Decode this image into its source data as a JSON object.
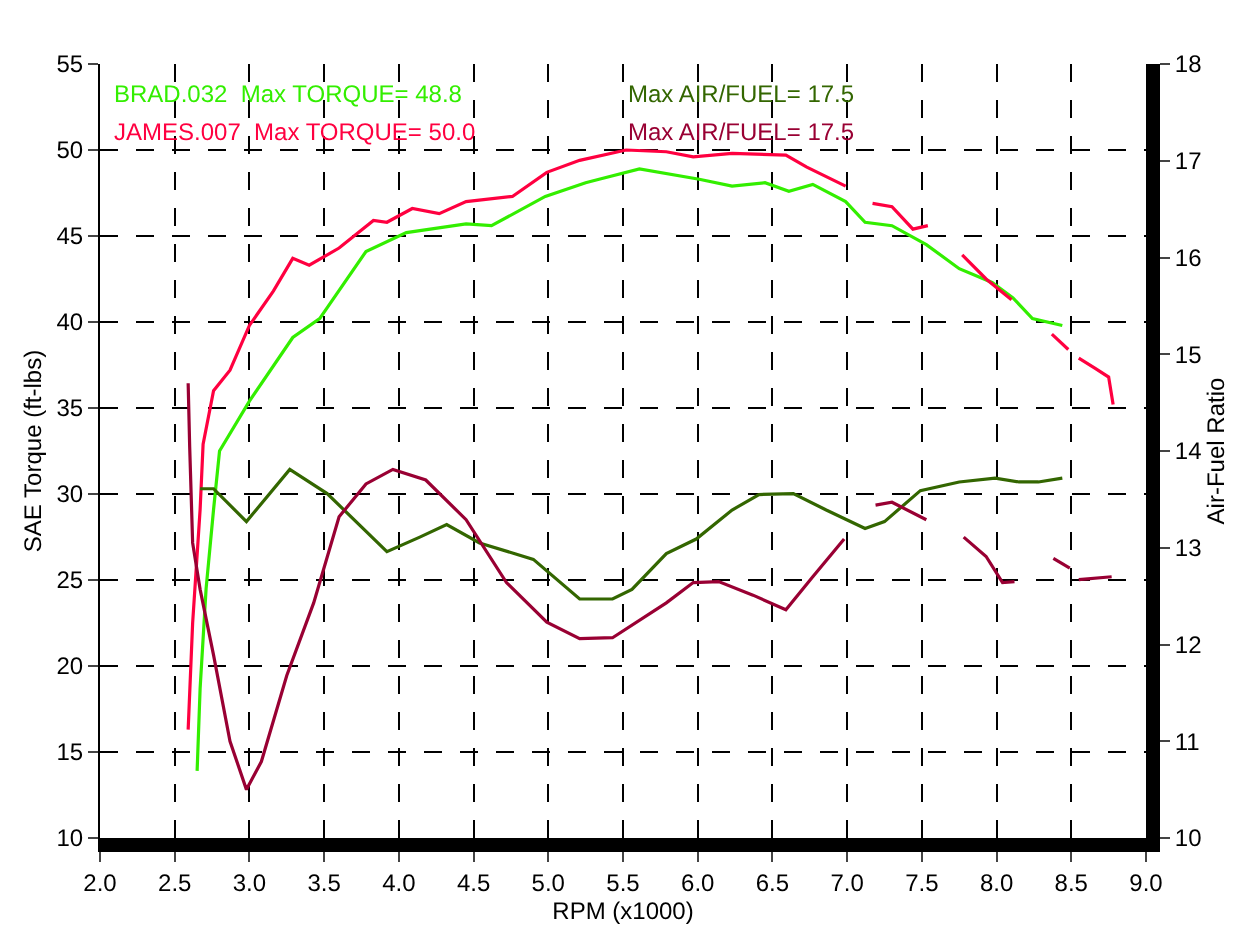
{
  "chart_data": {
    "type": "line",
    "xlabel": "RPM (x1000)",
    "ylabel": "SAE Torque (ft-lbs)",
    "y2label": "Air-Fuel Ratio",
    "annotations": [
      "BRAD.032  Max TORQUE= 48.8",
      "JAMES.007  Max TORQUE= 50.0",
      "Max AIR/FUEL= 17.5",
      "Max AIR/FUEL= 17.5"
    ],
    "xlim": [
      2.0,
      9.0
    ],
    "xticks": [
      {
        "value": 2.0,
        "label": "2.0"
      },
      {
        "value": 2.5,
        "label": "2.5"
      },
      {
        "value": 3.0,
        "label": "3.0"
      },
      {
        "value": 3.5,
        "label": "3.5"
      },
      {
        "value": 4.0,
        "label": "4.0"
      },
      {
        "value": 4.5,
        "label": "4.5"
      },
      {
        "value": 5.0,
        "label": "5.0"
      },
      {
        "value": 5.5,
        "label": "5.5"
      },
      {
        "value": 6.0,
        "label": "6.0"
      },
      {
        "value": 6.5,
        "label": "6.5"
      },
      {
        "value": 7.0,
        "label": "7.0"
      },
      {
        "value": 7.5,
        "label": "7.5"
      },
      {
        "value": 8.0,
        "label": "8.0"
      },
      {
        "value": 8.5,
        "label": "8.5"
      },
      {
        "value": 9.0,
        "label": "9.0"
      }
    ],
    "ylim": [
      10,
      55
    ],
    "yticks": [
      10,
      15,
      20,
      25,
      30,
      35,
      40,
      45,
      50,
      55
    ],
    "y2lim": [
      10,
      18
    ],
    "y2ticks": [
      10,
      11,
      12,
      13,
      14,
      15,
      16,
      17,
      18
    ],
    "grid": true,
    "marker": "none",
    "line_style": "solid",
    "series": [
      {
        "color": "#33ee00",
        "x": [
          2.65,
          2.67,
          2.71,
          2.76,
          2.8,
          3.0,
          3.29,
          3.47,
          3.78,
          4.05,
          4.45,
          4.62,
          4.98,
          5.25,
          5.34,
          5.61,
          6.01,
          6.23,
          6.45,
          6.61,
          6.77,
          6.99,
          7.12,
          7.3,
          7.53,
          7.75,
          7.97,
          8.11,
          8.24,
          8.44
        ],
        "values": [
          13.9,
          18.7,
          24.5,
          29.1,
          32.5,
          35.4,
          39.1,
          40.2,
          44.1,
          45.2,
          45.7,
          45.6,
          47.3,
          48.1,
          48.3,
          48.9,
          48.3,
          47.9,
          48.1,
          47.6,
          48.0,
          47.0,
          45.8,
          45.6,
          44.5,
          43.1,
          42.3,
          41.4,
          40.2,
          39.8
        ]
      },
      {
        "color": "#ff0040",
        "x": [
          2.59,
          2.62,
          2.67,
          2.69,
          2.76,
          2.87,
          3.0,
          3.16,
          3.29,
          3.4,
          3.6,
          3.83,
          3.92,
          4.09,
          4.27,
          4.45,
          4.76,
          4.99,
          5.21,
          5.52,
          5.79,
          5.97,
          6.23,
          6.59,
          6.73,
          6.99,
          7.08,
          7.17,
          7.3,
          7.44,
          7.54,
          7.65,
          7.77,
          7.93,
          8.1,
          8.24,
          8.37,
          8.48,
          8.52,
          8.55,
          8.66,
          8.75,
          8.78
        ],
        "values": [
          16.3,
          22.5,
          29.1,
          32.9,
          36.0,
          37.2,
          39.8,
          41.8,
          43.7,
          43.3,
          44.3,
          45.9,
          45.8,
          46.6,
          46.3,
          47.0,
          47.3,
          48.7,
          49.4,
          50.0,
          49.9,
          49.6,
          49.8,
          49.7,
          49.0,
          47.9,
          null,
          46.9,
          46.7,
          45.4,
          45.6,
          null,
          43.9,
          42.5,
          41.3,
          null,
          39.3,
          38.4,
          null,
          37.9,
          37.3,
          36.8,
          35.2
        ]
      },
      {
        "color": "#336600",
        "axis": "y2",
        "x": [
          2.67,
          2.76,
          2.98,
          3.27,
          3.52,
          3.92,
          4.14,
          4.32,
          4.54,
          4.9,
          5.21,
          5.43,
          5.56,
          5.79,
          5.99,
          6.23,
          6.41,
          6.64,
          6.86,
          7.12,
          7.25,
          7.49,
          7.75,
          7.99,
          8.15,
          8.28,
          8.44
        ],
        "values": [
          13.61,
          13.61,
          13.27,
          13.81,
          13.56,
          12.96,
          13.11,
          13.24,
          13.05,
          12.88,
          12.47,
          12.47,
          12.57,
          12.94,
          13.09,
          13.39,
          13.55,
          13.56,
          13.39,
          13.2,
          13.27,
          13.59,
          13.68,
          13.72,
          13.68,
          13.68,
          13.72
        ]
      },
      {
        "color": "#990033",
        "axis": "y2",
        "x": [
          2.59,
          2.6,
          2.62,
          2.67,
          2.76,
          2.87,
          2.98,
          3.08,
          3.25,
          3.43,
          3.6,
          3.78,
          3.96,
          4.18,
          4.45,
          4.72,
          4.99,
          5.21,
          5.43,
          5.79,
          5.97,
          6.14,
          6.37,
          6.59,
          6.77,
          6.98,
          7.08,
          7.19,
          7.3,
          7.53,
          7.65,
          7.78,
          7.93,
          8.04,
          8.12,
          8.25,
          8.38,
          8.49,
          8.52,
          8.55,
          8.77
        ],
        "values": [
          14.7,
          14.05,
          13.05,
          12.57,
          11.89,
          11.0,
          10.5,
          10.79,
          11.68,
          12.43,
          13.32,
          13.66,
          13.81,
          13.7,
          13.29,
          12.64,
          12.23,
          12.06,
          12.07,
          12.43,
          12.64,
          12.65,
          12.51,
          12.36,
          12.7,
          13.09,
          null,
          13.44,
          13.47,
          13.29,
          null,
          13.11,
          12.91,
          12.64,
          12.65,
          null,
          12.89,
          12.79,
          null,
          12.67,
          12.7
        ]
      }
    ]
  }
}
